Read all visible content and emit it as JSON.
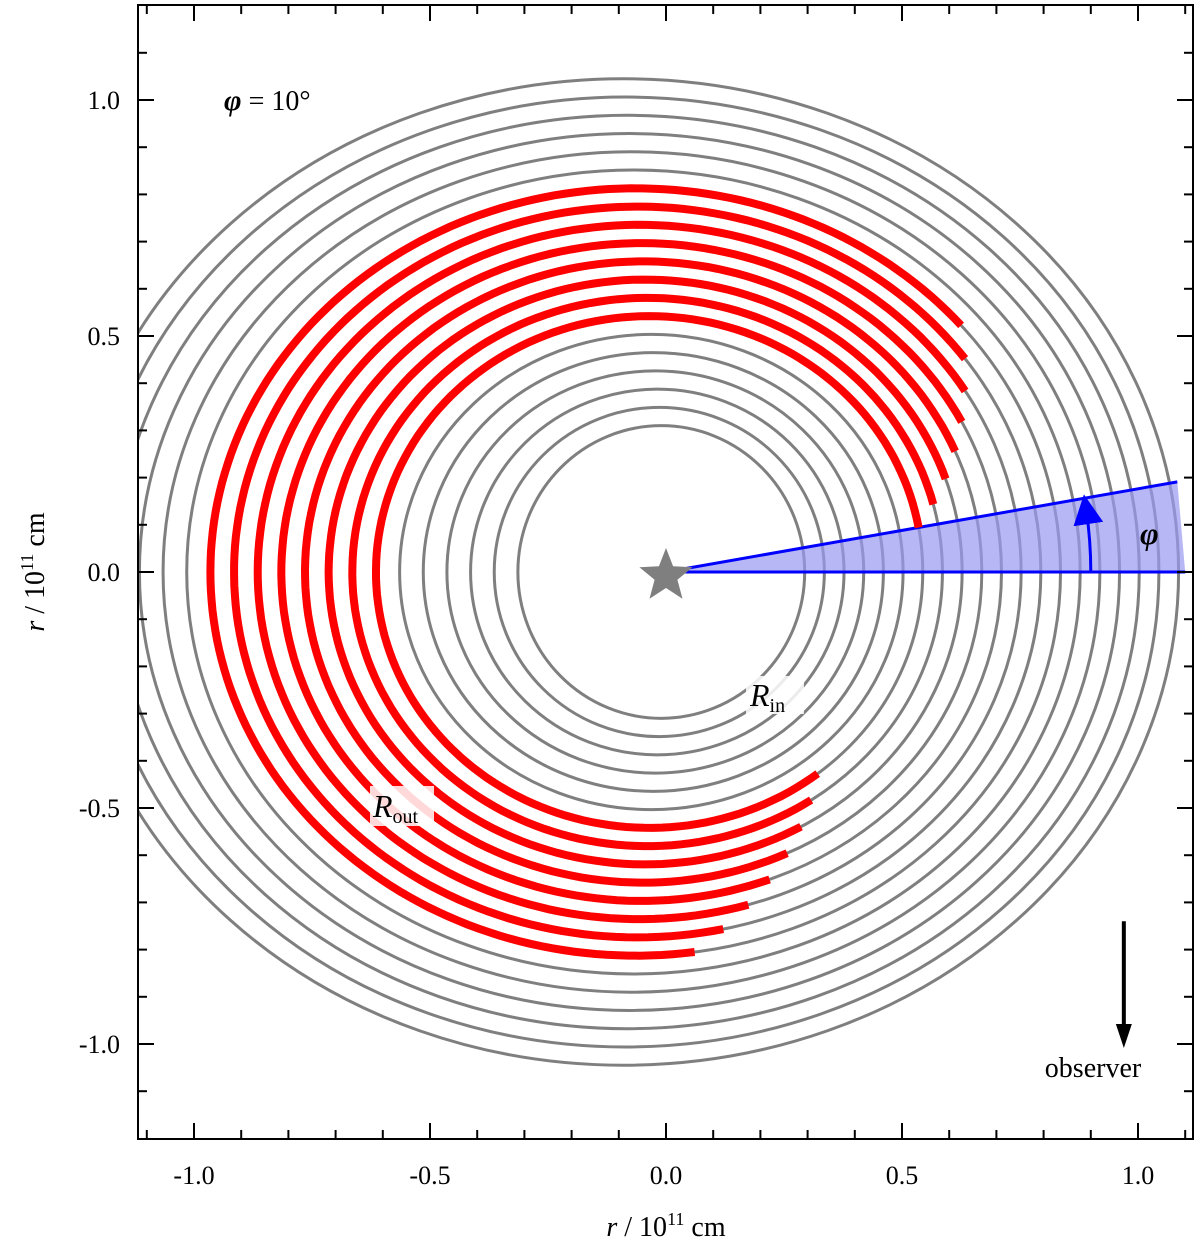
{
  "chart_data": {
    "type": "scatter",
    "xlabel": {
      "symbol": "r",
      "separator": " / 10",
      "exponent": "11",
      "unit": " cm"
    },
    "ylabel": {
      "symbol": "r",
      "separator": " / 10",
      "exponent": "11",
      "unit": " cm"
    },
    "xlim": [
      -1.2,
      1.2
    ],
    "ylim": [
      -1.2,
      1.2
    ],
    "x_ticks": [
      "-1.0",
      "-0.5",
      "0.0",
      "0.5",
      "1.0"
    ],
    "y_ticks": [
      "1.0",
      "0.5",
      "0.0",
      "-0.5",
      "-1.0"
    ],
    "x_tick_values": [
      -1.0,
      -0.5,
      0.0,
      0.5,
      1.0
    ],
    "y_tick_values": [
      1.0,
      0.5,
      0.0,
      -0.5,
      -1.0
    ],
    "minor_tick_step": 0.1,
    "grid": false,
    "ellipses": {
      "color": "#7f7f7f",
      "focus": [
        0.0,
        0.0
      ],
      "count": 20,
      "center_x_first": -0.01,
      "center_x_last": -0.09,
      "semi_x_first": 0.31,
      "semi_x_last": 1.2,
      "semi_y_first": 0.31,
      "semi_y_last": 1.045
    },
    "red_arcs": {
      "color": "#ff0000",
      "index_first": 6,
      "index_last": 13,
      "start_angle_deg_first": -52,
      "start_angle_deg_last": -82,
      "end_angle_deg_first": 10,
      "end_angle_deg_last": 40
    },
    "wedge": {
      "phi_deg": 10,
      "color": "#0000ff",
      "fill": "#9999f2",
      "length": 1.1,
      "arc_radius": 0.9
    },
    "star": {
      "x": 0.0,
      "y": 0.0,
      "color": "#7f7f7f"
    },
    "observer_arrow": {
      "x": 0.97,
      "y_from": -0.74,
      "y_to": -1.0,
      "label": "observer"
    },
    "annotations": {
      "phi_value": {
        "symbol": "φ",
        "text": " = 10°",
        "x": -0.97,
        "y": 0.97
      },
      "phi_symbol": {
        "symbol": "φ",
        "x": 1.15,
        "y": 0.08
      },
      "r_in": {
        "main": "R",
        "sub": "in",
        "x": 0.2,
        "y": -0.26
      },
      "r_out": {
        "main": "R",
        "sub": "out",
        "x": -0.65,
        "y": -0.52
      }
    }
  }
}
